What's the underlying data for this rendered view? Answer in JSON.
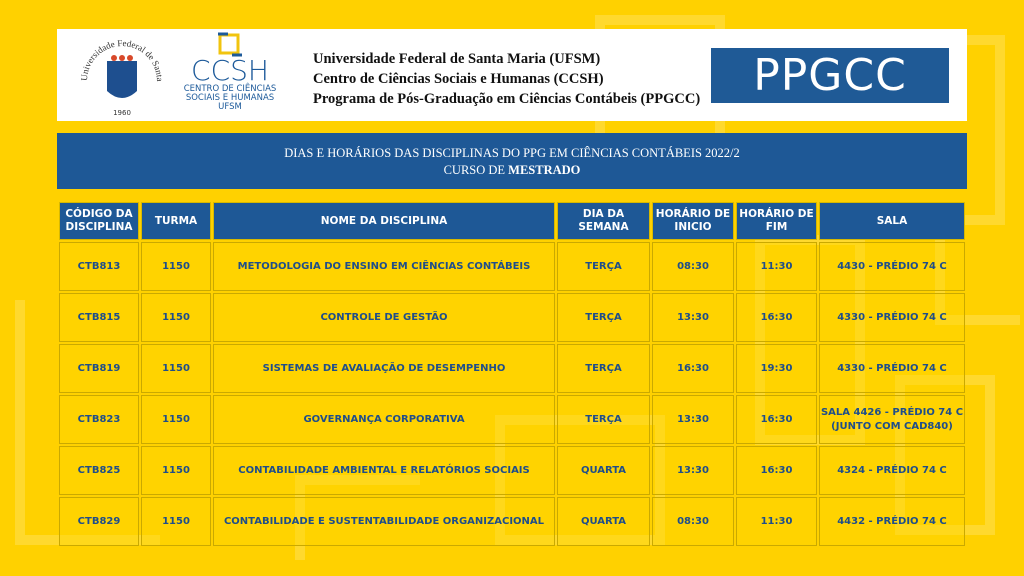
{
  "header": {
    "seal_text": "Universidade Federal de Santa Maria",
    "seal_year": "1960",
    "ccsh_logo": "CCSH",
    "ccsh_sub1": "CENTRO DE CIÊNCIAS",
    "ccsh_sub2": "SOCIAIS E HUMANAS",
    "ccsh_sub3": "UFSM",
    "lines": [
      "Universidade Federal de Santa Maria (UFSM)",
      "Centro de Ciências Sociais e Humanas (CCSH)",
      "Programa de Pós-Graduação em Ciências Contábeis (PPGCC)"
    ],
    "ppgcc_logo": "PPGCC"
  },
  "banner": {
    "title": "DIAS E HORÁRIOS DAS DISCIPLINAS DO PPG EM CIÊNCIAS CONTÁBEIS 2022/2",
    "subtitle_prefix": "CURSO DE ",
    "subtitle_bold": "MESTRADO"
  },
  "table": {
    "headers": [
      "CÓDIGO DA DISCIPLINA",
      "TURMA",
      "NOME DA DISCIPLINA",
      "DIA DA SEMANA",
      "HORÁRIO DE INICIO",
      "HORÁRIO DE FIM",
      "SALA"
    ],
    "rows": [
      [
        "CTB813",
        "1150",
        "METODOLOGIA DO ENSINO EM CIÊNCIAS CONTÁBEIS",
        "TERÇA",
        "08:30",
        "11:30",
        "4430 - PRÉDIO 74 C"
      ],
      [
        "CTB815",
        "1150",
        "CONTROLE DE GESTÃO",
        "TERÇA",
        "13:30",
        "16:30",
        "4330 - PRÉDIO 74 C"
      ],
      [
        "CTB819",
        "1150",
        "SISTEMAS DE AVALIAÇÃO DE DESEMPENHO",
        "TERÇA",
        "16:30",
        "19:30",
        "4330 - PRÉDIO 74 C"
      ],
      [
        "CTB823",
        "1150",
        "GOVERNANÇA CORPORATIVA",
        "TERÇA",
        "13:30",
        "16:30",
        "SALA 4426 - PRÉDIO 74 C (JUNTO COM CAD840)"
      ],
      [
        "CTB825",
        "1150",
        "CONTABILIDADE AMBIENTAL E RELATÓRIOS SOCIAIS",
        "QUARTA",
        "13:30",
        "16:30",
        "4324 - PRÉDIO 74 C"
      ],
      [
        "CTB829",
        "1150",
        "CONTABILIDADE E SUSTENTABILIDADE ORGANIZACIONAL",
        "QUARTA",
        "08:30",
        "11:30",
        "4432 - PRÉDIO 74 C"
      ]
    ]
  }
}
